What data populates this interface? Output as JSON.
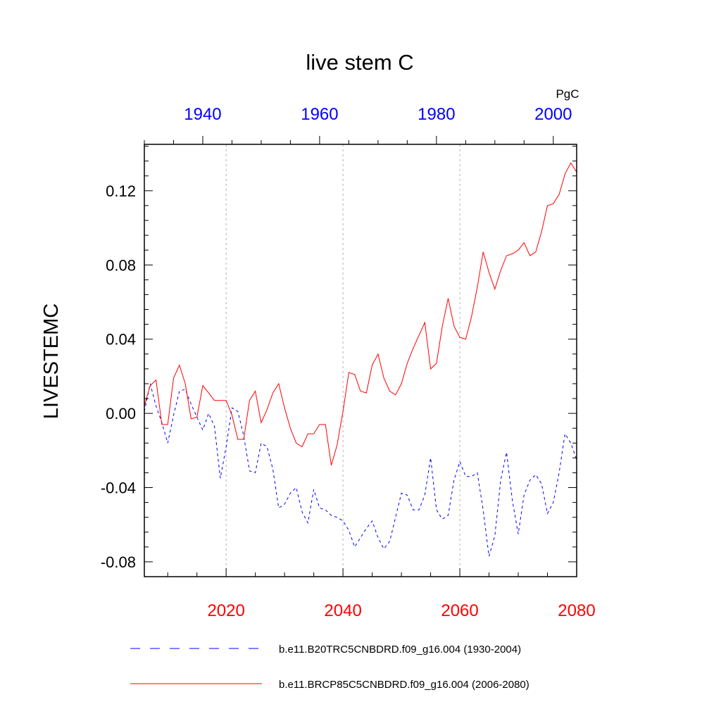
{
  "chart_data": {
    "type": "line",
    "title": "live stem C",
    "ylabel": "LIVESTEMC",
    "units": "PgC",
    "ylim": [
      -0.088,
      0.145
    ],
    "yticks": [
      -0.08,
      -0.04,
      0.0,
      0.04,
      0.08,
      0.12
    ],
    "ytick_labels": [
      "-0.08",
      "-0.04",
      "0.00",
      "0.04",
      "0.08",
      "0.12"
    ],
    "bottom_axis": {
      "range": [
        2006,
        2080
      ],
      "ticks": [
        2020,
        2040,
        2060,
        2080
      ],
      "tick_labels": [
        "2020",
        "2040",
        "2060",
        "2080"
      ],
      "color": "#ff0000"
    },
    "top_axis": {
      "range": [
        1930,
        2004
      ],
      "ticks": [
        1940,
        1960,
        1980,
        2000
      ],
      "tick_labels": [
        "1940",
        "1960",
        "1980",
        "2000"
      ],
      "color": "#0000ff"
    },
    "gridlines_x": [
      2020,
      2040,
      2060
    ],
    "series": [
      {
        "name": "b.e11.B20TRC5CNBDRD.f09_g16.004 (1930-2004)",
        "color": "#0000ff",
        "style": "dashed",
        "axis": "top",
        "x_start": 1930,
        "values": [
          0.001,
          0.016,
          0.004,
          -0.005,
          -0.016,
          -0.001,
          0.012,
          0.013,
          0.005,
          -0.002,
          -0.009,
          0.0,
          -0.007,
          -0.035,
          -0.018,
          0.003,
          0.001,
          -0.012,
          -0.031,
          -0.032,
          -0.016,
          -0.018,
          -0.03,
          -0.051,
          -0.049,
          -0.043,
          -0.04,
          -0.053,
          -0.059,
          -0.041,
          -0.051,
          -0.052,
          -0.055,
          -0.056,
          -0.058,
          -0.063,
          -0.072,
          -0.067,
          -0.062,
          -0.058,
          -0.067,
          -0.073,
          -0.069,
          -0.056,
          -0.043,
          -0.044,
          -0.052,
          -0.052,
          -0.044,
          -0.024,
          -0.052,
          -0.057,
          -0.055,
          -0.036,
          -0.026,
          -0.034,
          -0.034,
          -0.032,
          -0.052,
          -0.077,
          -0.066,
          -0.036,
          -0.021,
          -0.047,
          -0.065,
          -0.044,
          -0.036,
          -0.033,
          -0.038,
          -0.054,
          -0.048,
          -0.032,
          -0.011,
          -0.016,
          -0.025
        ]
      },
      {
        "name": "b.e11.BRCP85C5CNBDRD.f09_g16.004 (2006-2080)",
        "color": "#ff0000",
        "style": "solid",
        "axis": "bottom",
        "x_start": 2006,
        "values": [
          0.004,
          0.015,
          0.018,
          -0.006,
          -0.006,
          0.019,
          0.026,
          0.016,
          -0.003,
          -0.002,
          0.015,
          0.011,
          0.007,
          0.007,
          0.007,
          -0.001,
          -0.014,
          -0.014,
          0.007,
          0.012,
          -0.005,
          0.002,
          0.011,
          0.016,
          0.003,
          -0.008,
          -0.016,
          -0.018,
          -0.011,
          -0.011,
          -0.006,
          -0.006,
          -0.028,
          -0.017,
          0.001,
          0.022,
          0.021,
          0.012,
          0.011,
          0.026,
          0.032,
          0.019,
          0.012,
          0.01,
          0.016,
          0.027,
          0.035,
          0.042,
          0.049,
          0.024,
          0.027,
          0.047,
          0.062,
          0.047,
          0.041,
          0.04,
          0.052,
          0.068,
          0.087,
          0.076,
          0.067,
          0.077,
          0.085,
          0.086,
          0.088,
          0.092,
          0.085,
          0.087,
          0.098,
          0.112,
          0.113,
          0.118,
          0.129,
          0.135,
          0.13
        ]
      }
    ]
  }
}
